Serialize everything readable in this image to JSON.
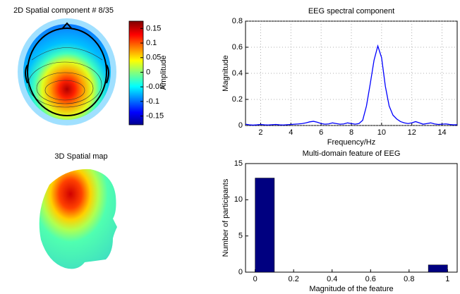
{
  "chart_data": [
    {
      "type": "topomap",
      "title": "2D Spatial component # 8/35",
      "colorbar_label": "Amplitude",
      "clim": [
        -0.18,
        0.175
      ],
      "cticks": [
        0.15,
        0.1,
        0.05,
        0,
        -0.05,
        -0.1,
        -0.15
      ]
    },
    {
      "type": "line",
      "title": "EEG spectral component",
      "xlabel": "Frequency/Hz",
      "ylabel": "Magnitude",
      "color": "#0000ff",
      "grid": true,
      "x": [
        1,
        1.25,
        1.5,
        1.75,
        2,
        2.25,
        2.5,
        2.75,
        3,
        3.25,
        3.5,
        3.75,
        4,
        4.25,
        4.5,
        4.75,
        5,
        5.25,
        5.5,
        5.75,
        6,
        6.25,
        6.5,
        6.75,
        7,
        7.25,
        7.5,
        7.75,
        8,
        8.25,
        8.5,
        8.75,
        9,
        9.25,
        9.5,
        9.75,
        10,
        10.25,
        10.5,
        10.75,
        11,
        11.25,
        11.5,
        11.75,
        12,
        12.25,
        12.5,
        12.75,
        13,
        13.25,
        13.5,
        13.75,
        14,
        14.25,
        14.5,
        14.75,
        15
      ],
      "values": [
        0.01,
        0.005,
        0.003,
        0.005,
        0.008,
        0.005,
        0.004,
        0.006,
        0.008,
        0.005,
        0.004,
        0.006,
        0.008,
        0.01,
        0.012,
        0.015,
        0.02,
        0.028,
        0.032,
        0.025,
        0.015,
        0.01,
        0.012,
        0.02,
        0.015,
        0.01,
        0.012,
        0.02,
        0.015,
        0.01,
        0.015,
        0.04,
        0.15,
        0.32,
        0.5,
        0.61,
        0.52,
        0.3,
        0.15,
        0.08,
        0.05,
        0.03,
        0.02,
        0.015,
        0.02,
        0.03,
        0.02,
        0.01,
        0.015,
        0.02,
        0.012,
        0.008,
        0.01,
        0.012,
        0.008,
        0.005,
        0.006
      ],
      "xlim": [
        1,
        15
      ],
      "xticks": [
        2,
        4,
        6,
        8,
        10,
        12,
        14
      ],
      "ylim": [
        0,
        0.8
      ],
      "yticks": [
        0,
        0.2,
        0.4,
        0.6,
        0.8
      ]
    },
    {
      "type": "surface",
      "title": "3D Spatial map"
    },
    {
      "type": "histogram",
      "title": "Multi-domain feature of EEG",
      "xlabel": "Magnitude of the feature",
      "ylabel": "Number of participants",
      "color": "#000080",
      "grid": false,
      "bins": [
        0,
        0.1,
        0.2,
        0.3,
        0.4,
        0.5,
        0.6,
        0.7,
        0.8,
        0.9,
        1
      ],
      "values": [
        13,
        0,
        0,
        0,
        0,
        0,
        0,
        0,
        0,
        1
      ],
      "xlim": [
        -0.05,
        1.05
      ],
      "xticks": [
        0,
        0.2,
        0.4,
        0.6,
        0.8,
        1
      ],
      "ylim": [
        0,
        15
      ],
      "yticks": [
        0,
        5,
        10,
        15
      ]
    }
  ]
}
